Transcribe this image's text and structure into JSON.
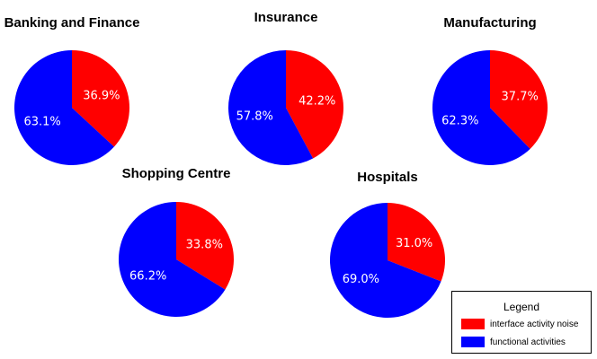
{
  "chart_data": [
    {
      "type": "pie",
      "title": "Banking and Finance",
      "series": [
        {
          "name": "interface activity noise",
          "value": 36.9,
          "label": "36.9%"
        },
        {
          "name": "functional activities",
          "value": 63.1,
          "label": "63.1%"
        }
      ]
    },
    {
      "type": "pie",
      "title": "Insurance",
      "series": [
        {
          "name": "interface activity noise",
          "value": 42.2,
          "label": "42.2%"
        },
        {
          "name": "functional activities",
          "value": 57.8,
          "label": "57.8%"
        }
      ]
    },
    {
      "type": "pie",
      "title": "Manufacturing",
      "series": [
        {
          "name": "interface activity noise",
          "value": 37.7,
          "label": "37.7%"
        },
        {
          "name": "functional activities",
          "value": 62.3,
          "label": "62.3%"
        }
      ]
    },
    {
      "type": "pie",
      "title": "Shopping Centre",
      "series": [
        {
          "name": "interface activity noise",
          "value": 33.8,
          "label": "33.8%"
        },
        {
          "name": "functional activities",
          "value": 66.2,
          "label": "66.2%"
        }
      ]
    },
    {
      "type": "pie",
      "title": "Hospitals",
      "series": [
        {
          "name": "interface activity noise",
          "value": 31.0,
          "label": "31.0%"
        },
        {
          "name": "functional activities",
          "value": 69.0,
          "label": "69.0%"
        }
      ]
    }
  ],
  "legend": {
    "title": "Legend",
    "items": [
      {
        "label": "interface activity noise",
        "color": "#ff0000"
      },
      {
        "label": "functional activities",
        "color": "#0000ff"
      }
    ]
  }
}
